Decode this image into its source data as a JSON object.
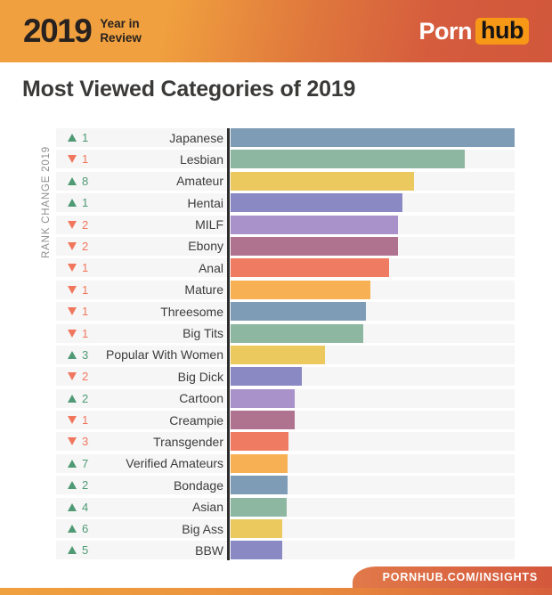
{
  "header": {
    "year": "2019",
    "tagline_line1": "Year in",
    "tagline_line2": "Review",
    "brand_porn": "Porn",
    "brand_hub": "hub"
  },
  "title": "Most Viewed Categories of 2019",
  "y_axis_label": "RANK CHANGE 2019",
  "footer": {
    "link": "PORNHUB.COM/INSIGHTS"
  },
  "colors": {
    "rank_up": "#4f9a74",
    "rank_down": "#f0765d",
    "row_background": "#f6f6f6",
    "axis_line": "#2d2d2d",
    "header_gradient_left": "#f0a03e",
    "header_gradient_right": "#d2573c",
    "logo_hub_badge": "#f79817"
  },
  "chart_data": {
    "type": "bar",
    "orientation": "horizontal",
    "title": "Most Viewed Categories of 2019",
    "ylabel": "RANK CHANGE 2019",
    "xlabel": "",
    "xlim": [
      0,
      100
    ],
    "grid": false,
    "legend": false,
    "categories": [
      "Japanese",
      "Lesbian",
      "Amateur",
      "Hentai",
      "MILF",
      "Ebony",
      "Anal",
      "Mature",
      "Threesome",
      "Big Tits",
      "Popular With Women",
      "Big Dick",
      "Cartoon",
      "Creampie",
      "Transgender",
      "Verified Amateurs",
      "Bondage",
      "Asian",
      "Big Ass",
      "BBW"
    ],
    "values_pct_of_max": [
      100,
      82.5,
      64.7,
      60.6,
      58.8,
      58.8,
      55.9,
      49.1,
      47.5,
      46.6,
      33.1,
      25.0,
      22.5,
      22.5,
      20.3,
      20.0,
      20.0,
      19.7,
      18.1,
      18.1
    ],
    "rank_change_direction": [
      "up",
      "down",
      "up",
      "up",
      "down",
      "down",
      "down",
      "down",
      "down",
      "down",
      "up",
      "down",
      "up",
      "down",
      "down",
      "up",
      "up",
      "up",
      "up",
      "up"
    ],
    "rank_change_amount": [
      1,
      1,
      8,
      1,
      2,
      2,
      1,
      1,
      1,
      1,
      3,
      2,
      2,
      1,
      3,
      7,
      2,
      4,
      6,
      5
    ],
    "bar_colors": [
      "#7f9cb6",
      "#8db7a0",
      "#ecc95f",
      "#8a89c4",
      "#a992c9",
      "#b0738f",
      "#ee7b62",
      "#f8b055",
      "#7f9cb6",
      "#8db7a0",
      "#ecc95f",
      "#8a89c4",
      "#a992c9",
      "#b0738f",
      "#ee7b62",
      "#f8b055",
      "#7f9cb6",
      "#8db7a0",
      "#ecc95f",
      "#8a89c4"
    ]
  }
}
